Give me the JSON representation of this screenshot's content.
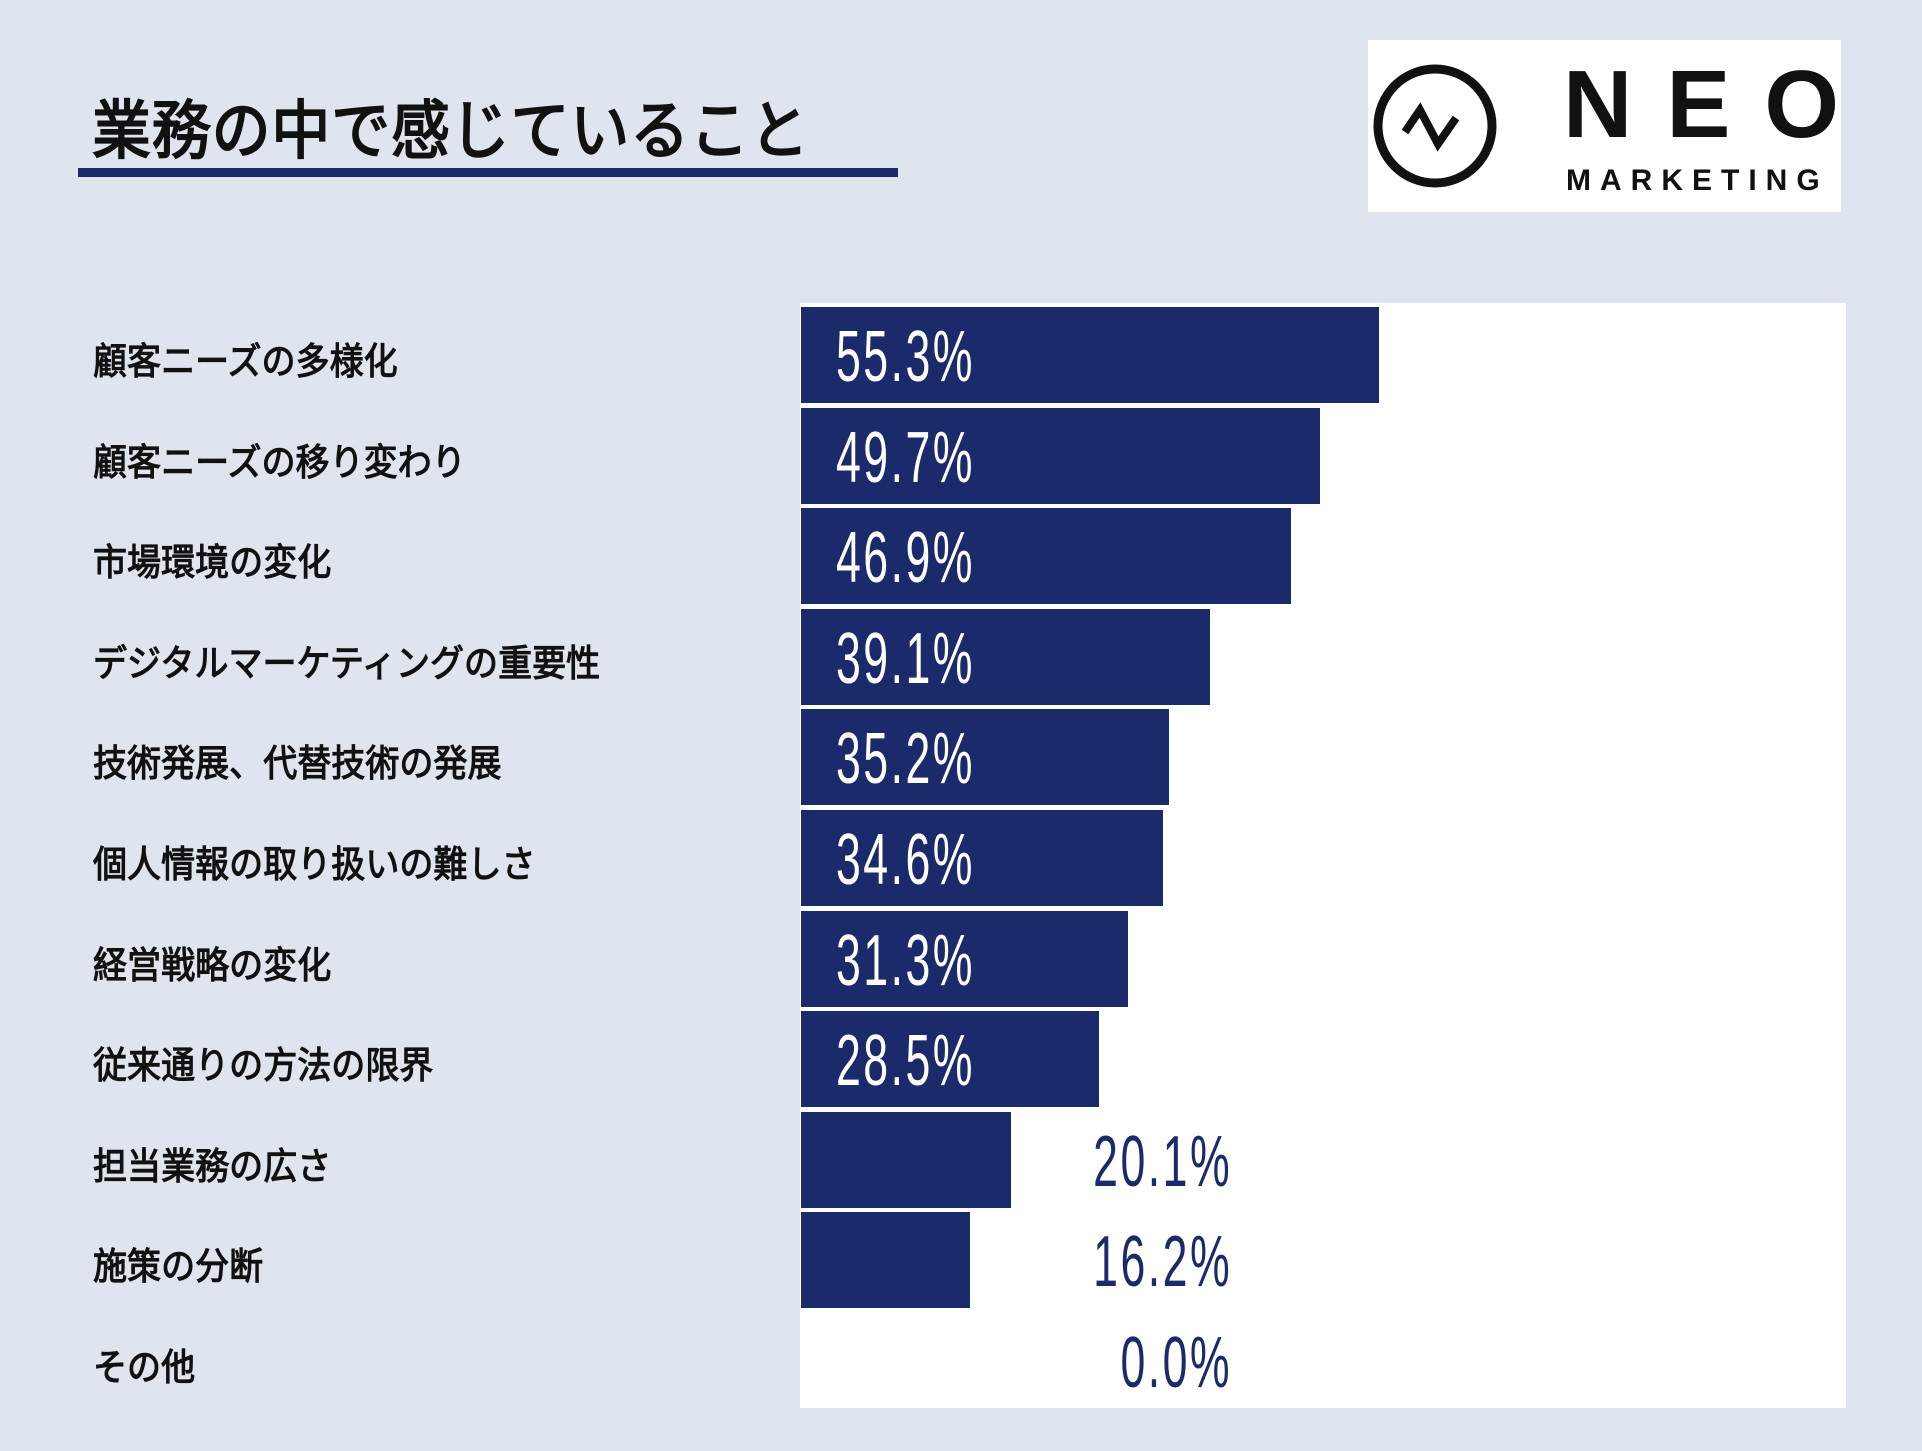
{
  "title": "業務の中で感じていること",
  "logo": {
    "main": "NEO",
    "sub": "MARKETING"
  },
  "colors": {
    "bar": "#1b2a6b",
    "background": "#dfe5ef",
    "plot": "#ffffff"
  },
  "chart_data": {
    "type": "bar",
    "orientation": "horizontal",
    "title": "業務の中で感じていること",
    "categories": [
      "顧客ニーズの多様化",
      "顧客ニーズの移り変わり",
      "市場環境の変化",
      "デジタルマーケティングの重要性",
      "技術発展、代替技術の発展",
      "個人情報の取り扱いの難しさ",
      "経営戦略の変化",
      "従来通りの方法の限界",
      "担当業務の広さ",
      "施策の分断",
      "その他"
    ],
    "values": [
      55.3,
      49.7,
      46.9,
      39.1,
      35.2,
      34.6,
      31.3,
      28.5,
      20.1,
      16.2,
      0.0
    ],
    "labels": [
      "55.3%",
      "49.7%",
      "46.9%",
      "39.1%",
      "35.2%",
      "34.6%",
      "31.3%",
      "28.5%",
      "20.1%",
      "16.2%",
      "0.0%"
    ],
    "xlim": [
      0,
      100
    ],
    "grid": false,
    "legend": "none"
  }
}
